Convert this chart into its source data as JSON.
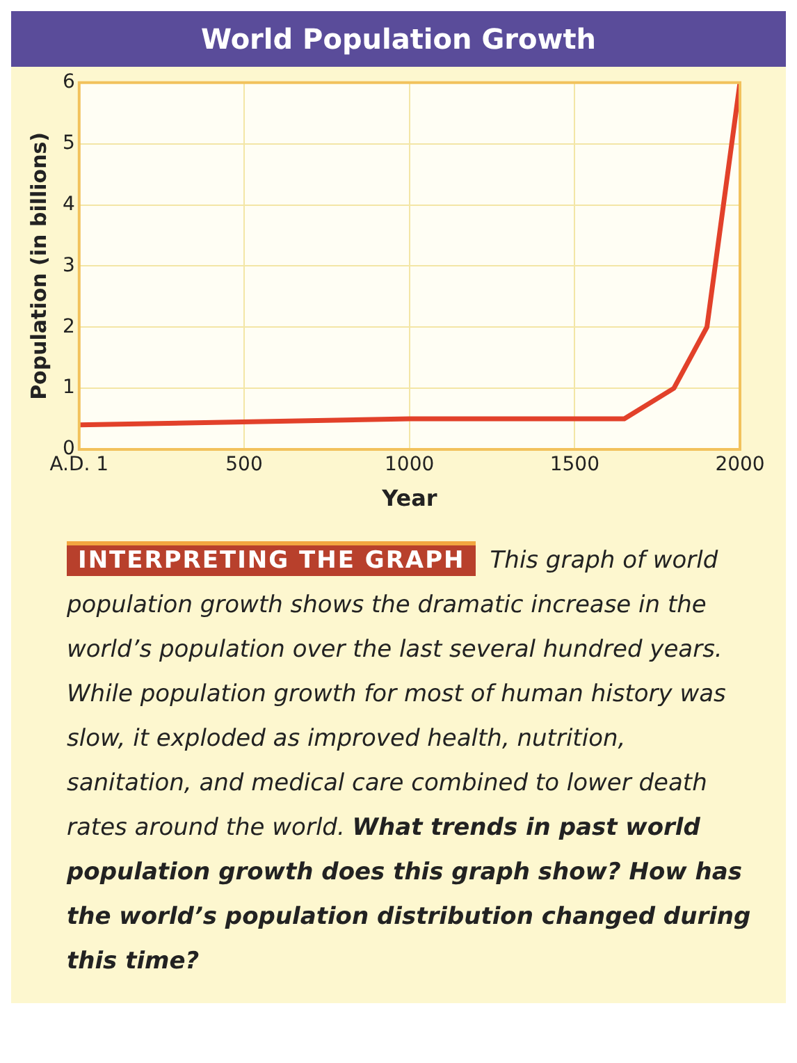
{
  "chart_data": {
    "type": "line",
    "title": "World Population Growth",
    "xlabel": "Year",
    "ylabel": "Population (in billions)",
    "x": [
      1,
      1000,
      1650,
      1800,
      1900,
      2000
    ],
    "series": [
      {
        "color": "#e2412a",
        "values": [
          0.4,
          0.5,
          0.5,
          1,
          2,
          6
        ]
      }
    ],
    "xlim": [
      1,
      2000
    ],
    "xticks": [
      {
        "value": 1,
        "label": "A.D. 1"
      },
      500,
      1000,
      1500,
      2000
    ],
    "ylim": [
      0,
      6
    ],
    "yticks": [
      0,
      1,
      2,
      3,
      4,
      5,
      6
    ],
    "grid": true,
    "marker": "none",
    "line_style": "solid",
    "annotations": [
      "INTERPRETING THE GRAPH",
      "This graph of world population growth shows the dramatic increase in the world’s population over the last several hundred years. While population growth for most of human history was slow, it exploded as improved health, nutrition, sanitation, and medical care combined to lower death rates around the world.",
      "What trends in past world population growth does this graph show? How has the world’s population distribution changed during this time?"
    ]
  }
}
